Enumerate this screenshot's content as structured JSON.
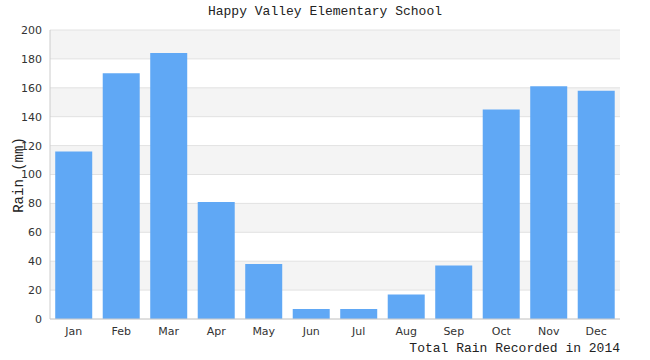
{
  "chart_data": {
    "type": "bar",
    "title": "Happy Valley Elementary School",
    "subtitle": "Total Rain Recorded in 2014",
    "y_label": "Rain (mm)",
    "categories": [
      "Jan",
      "Feb",
      "Mar",
      "Apr",
      "May",
      "Jun",
      "Jul",
      "Aug",
      "Sep",
      "Oct",
      "Nov",
      "Dec"
    ],
    "values": [
      116,
      170,
      184,
      81,
      38,
      7,
      7,
      17,
      37,
      145,
      161,
      158
    ],
    "color": "#60a8f5",
    "ylim": [
      0,
      200
    ],
    "yticks": [
      0,
      20,
      40,
      60,
      80,
      100,
      120,
      140,
      160,
      180,
      200
    ],
    "grid": true
  }
}
